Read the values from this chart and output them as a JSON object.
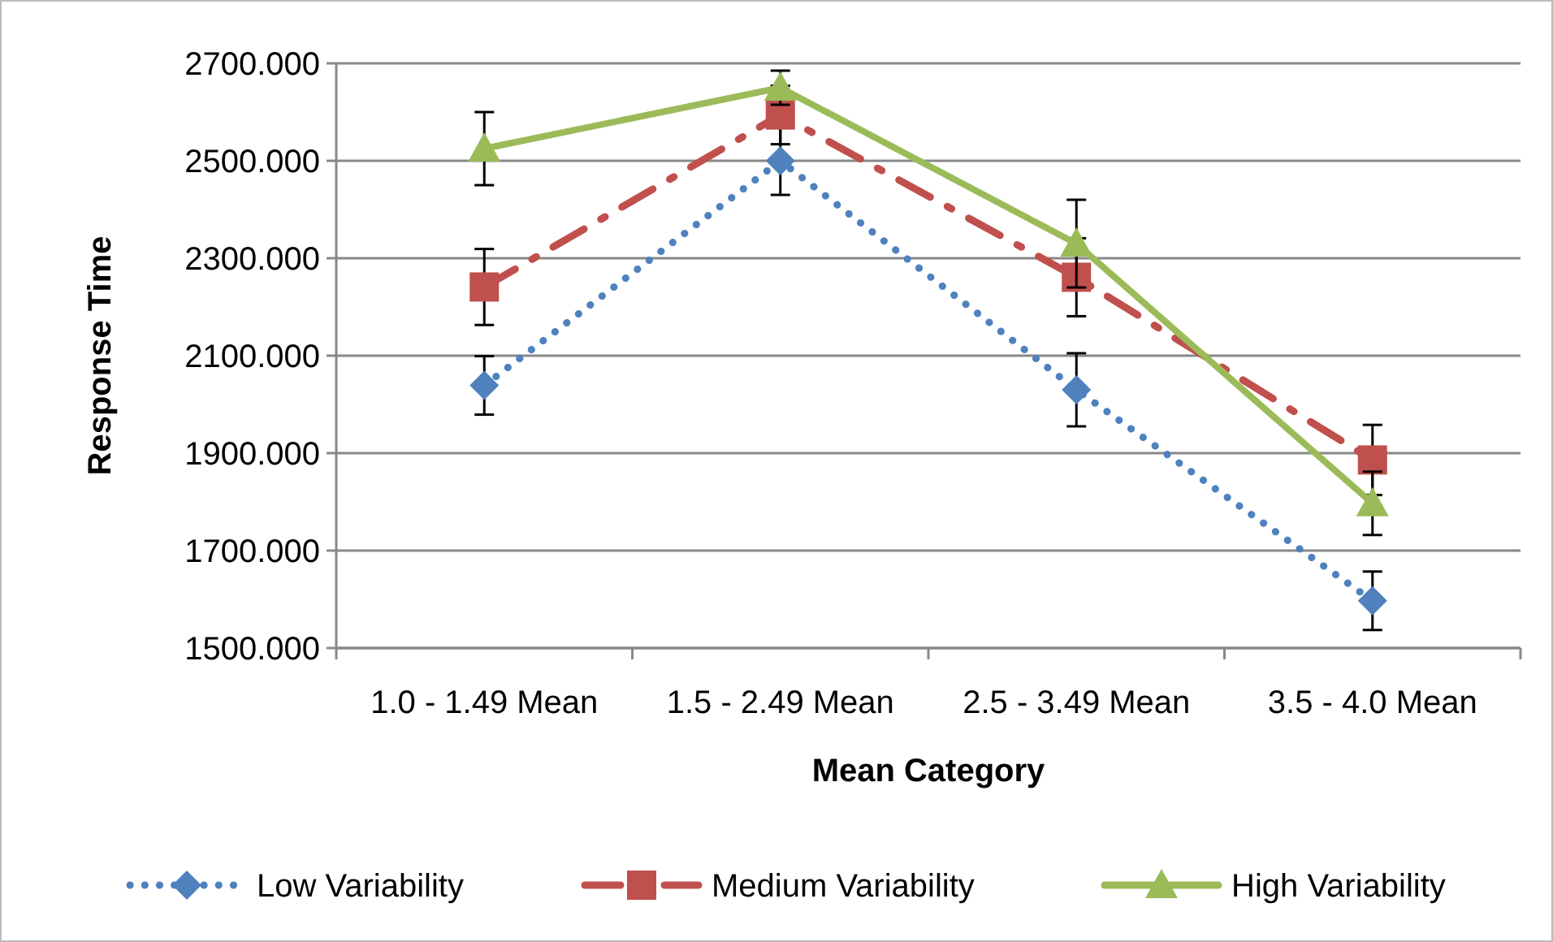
{
  "chart_data": {
    "type": "line",
    "xlabel": "Mean Category",
    "ylabel": "Response Time",
    "categories": [
      "1.0 - 1.49 Mean",
      "1.5 - 2.49 Mean",
      "2.5 - 3.49 Mean",
      "3.5 - 4.0 Mean"
    ],
    "series": [
      {
        "name": "Low Variability",
        "color": "#4f81bd",
        "values": [
          2039,
          2500,
          2030,
          1597
        ],
        "errors": [
          60,
          70,
          75,
          60
        ],
        "marker": "diamond",
        "line_style": "dotted"
      },
      {
        "name": "Medium Variability",
        "color": "#c0504d",
        "values": [
          2241,
          2594,
          2261,
          1886
        ],
        "errors": [
          78,
          60,
          80,
          72
        ],
        "marker": "square",
        "line_style": "dashed"
      },
      {
        "name": "High Variability",
        "color": "#9bbb59",
        "values": [
          2525,
          2650,
          2330,
          1797
        ],
        "errors": [
          75,
          35,
          90,
          65
        ],
        "marker": "triangle",
        "line_style": "solid"
      }
    ],
    "ylim": [
      1500,
      2700
    ],
    "yticks": [
      {
        "value": 1500,
        "label": "1500.000"
      },
      {
        "value": 1700,
        "label": "1700.000"
      },
      {
        "value": 1900,
        "label": "1900.000"
      },
      {
        "value": 2100,
        "label": "2100.000"
      },
      {
        "value": 2300,
        "label": "2300.000"
      },
      {
        "value": 2500,
        "label": "2500.000"
      },
      {
        "value": 2700,
        "label": "2700.000"
      }
    ],
    "grid": "y",
    "legend": "bottom"
  }
}
